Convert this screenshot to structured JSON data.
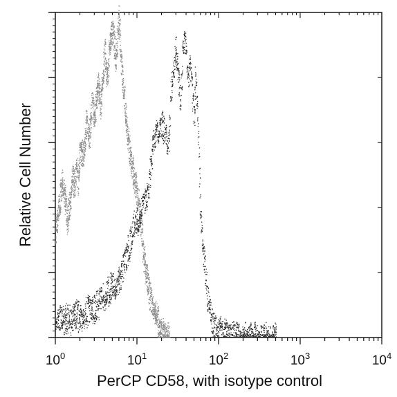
{
  "chart_data": {
    "type": "histogram",
    "title": "",
    "xlabel": "PerCP CD58, with isotype control",
    "ylabel": "Relative Cell Number",
    "x_scale": "log",
    "xlim": [
      1,
      10000
    ],
    "ylim": [
      0,
      100
    ],
    "grid": false,
    "legend": "none",
    "x_ticks": [
      {
        "value": 1,
        "base": "10",
        "exp": "0"
      },
      {
        "value": 10,
        "base": "10",
        "exp": "1"
      },
      {
        "value": 100,
        "base": "10",
        "exp": "2"
      },
      {
        "value": 1000,
        "base": "10",
        "exp": "3"
      },
      {
        "value": 10000,
        "base": "10",
        "exp": "4"
      }
    ],
    "y_ticks": [
      0,
      20,
      40,
      60,
      80,
      100
    ],
    "series": [
      {
        "role": "isotype control",
        "color": "#8a8a8a",
        "x": [
          1.0,
          1.1,
          1.2,
          1.3,
          1.4,
          1.5,
          1.6,
          1.7,
          1.8,
          1.9,
          2.0,
          2.2,
          2.4,
          2.6,
          2.8,
          3.0,
          3.3,
          3.6,
          4.0,
          4.3,
          4.6,
          5.0,
          5.5,
          6.0,
          6.5,
          7.0,
          7.5,
          8.0,
          8.5,
          9.0,
          10.0,
          11.0,
          12.0,
          13.0,
          14.0,
          15.0,
          16.0,
          17.0,
          18.0,
          19.0,
          20.0,
          22.0,
          25.0
        ],
        "y": [
          32,
          40,
          48,
          44,
          36,
          42,
          50,
          46,
          52,
          48,
          58,
          56,
          66,
          62,
          72,
          68,
          78,
          72,
          88,
          80,
          90,
          96,
          86,
          98,
          82,
          74,
          64,
          58,
          54,
          50,
          44,
          36,
          26,
          19,
          14,
          11,
          9,
          7,
          5,
          3,
          2,
          1,
          0
        ]
      },
      {
        "role": "PerCP CD58",
        "color": "#2a2a2a",
        "x": [
          1.0,
          1.2,
          1.4,
          1.6,
          1.8,
          2.0,
          2.5,
          3.0,
          3.5,
          4.0,
          5.0,
          6.0,
          7.0,
          8.0,
          9.0,
          10.0,
          11.0,
          12.0,
          13.0,
          14.0,
          15.0,
          16.0,
          17.0,
          18.0,
          20.0,
          22.0,
          24.0,
          26.0,
          28.0,
          30.0,
          32.0,
          34.0,
          36.0,
          38.0,
          40.0,
          42.0,
          45.0,
          48.0,
          50.0,
          52.0,
          55.0,
          58.0,
          60.0,
          65.0,
          70.0,
          75.0,
          80.0,
          85.0,
          90.0,
          95.0,
          100.0,
          120.0,
          150.0,
          200.0,
          300.0,
          500.0
        ],
        "y": [
          7,
          5,
          6,
          5,
          7,
          6,
          8,
          9,
          11,
          13,
          16,
          18,
          22,
          28,
          34,
          36,
          38,
          42,
          44,
          48,
          55,
          60,
          62,
          64,
          66,
          63,
          58,
          76,
          84,
          90,
          80,
          72,
          86,
          94,
          90,
          80,
          84,
          74,
          68,
          80,
          70,
          50,
          38,
          26,
          18,
          11,
          6,
          4,
          3,
          2,
          2,
          1,
          1,
          0,
          0,
          0
        ]
      }
    ]
  }
}
